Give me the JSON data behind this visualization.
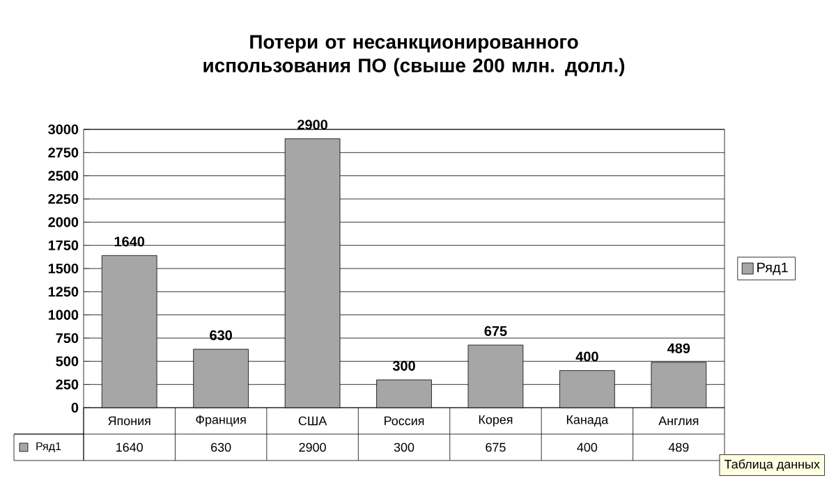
{
  "chart_data": {
    "type": "bar",
    "title": "Потери от несанкционированного использования ПО (свыше 200 млн. долл.)",
    "categories": [
      "Япония",
      "Франция",
      "США",
      "Россия",
      "Корея",
      "Канада",
      "Англия"
    ],
    "series": [
      {
        "name": "Ряд1",
        "color": "#a6a6a6",
        "values": [
          1640,
          630,
          2900,
          300,
          675,
          400,
          489
        ],
        "value_labels": [
          "1640",
          "630",
          "2900",
          "300",
          "675",
          "400",
          "489"
        ]
      }
    ],
    "ylim": [
      0,
      3000
    ],
    "yticks": [
      0,
      250,
      500,
      750,
      1000,
      1250,
      1500,
      1750,
      2000,
      2250,
      2500,
      2750,
      3000
    ],
    "grid": "y",
    "legend": "right",
    "data_labels": true,
    "annotations": [
      "Таблица данных"
    ]
  }
}
